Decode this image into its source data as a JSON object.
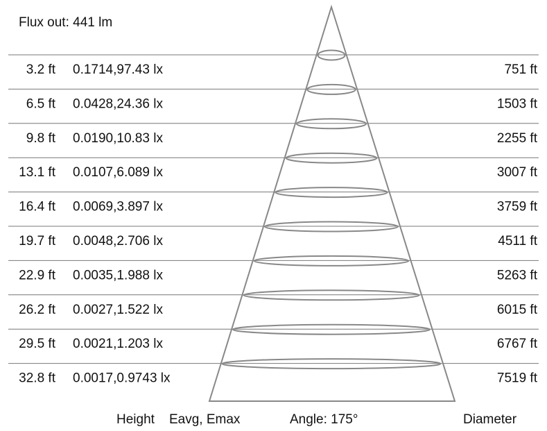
{
  "flux_label": "Flux out: 441 lm",
  "footer": {
    "height_label": "Height",
    "illum_label": "Eavg, Emax",
    "angle_label": "Angle: 175°",
    "diameter_label": "Diameter"
  },
  "rows": [
    {
      "height": "3.2 ft",
      "illuminance": "0.1714,97.43 lx",
      "diameter": "751 ft"
    },
    {
      "height": "6.5 ft",
      "illuminance": "0.0428,24.36 lx",
      "diameter": "1503 ft"
    },
    {
      "height": "9.8 ft",
      "illuminance": "0.0190,10.83 lx",
      "diameter": "2255 ft"
    },
    {
      "height": "13.1 ft",
      "illuminance": "0.0107,6.089 lx",
      "diameter": "3007 ft"
    },
    {
      "height": "16.4 ft",
      "illuminance": "0.0069,3.897 lx",
      "diameter": "3759 ft"
    },
    {
      "height": "19.7 ft",
      "illuminance": "0.0048,2.706 lx",
      "diameter": "4511 ft"
    },
    {
      "height": "22.9 ft",
      "illuminance": "0.0035,1.988 lx",
      "diameter": "5263 ft"
    },
    {
      "height": "26.2 ft",
      "illuminance": "0.0027,1.522 lx",
      "diameter": "6015 ft"
    },
    {
      "height": "29.5 ft",
      "illuminance": "0.0021,1.203 lx",
      "diameter": "6767 ft"
    },
    {
      "height": "32.8 ft",
      "illuminance": "0.0017,0.9743 lx",
      "diameter": "7519 ft"
    }
  ]
}
